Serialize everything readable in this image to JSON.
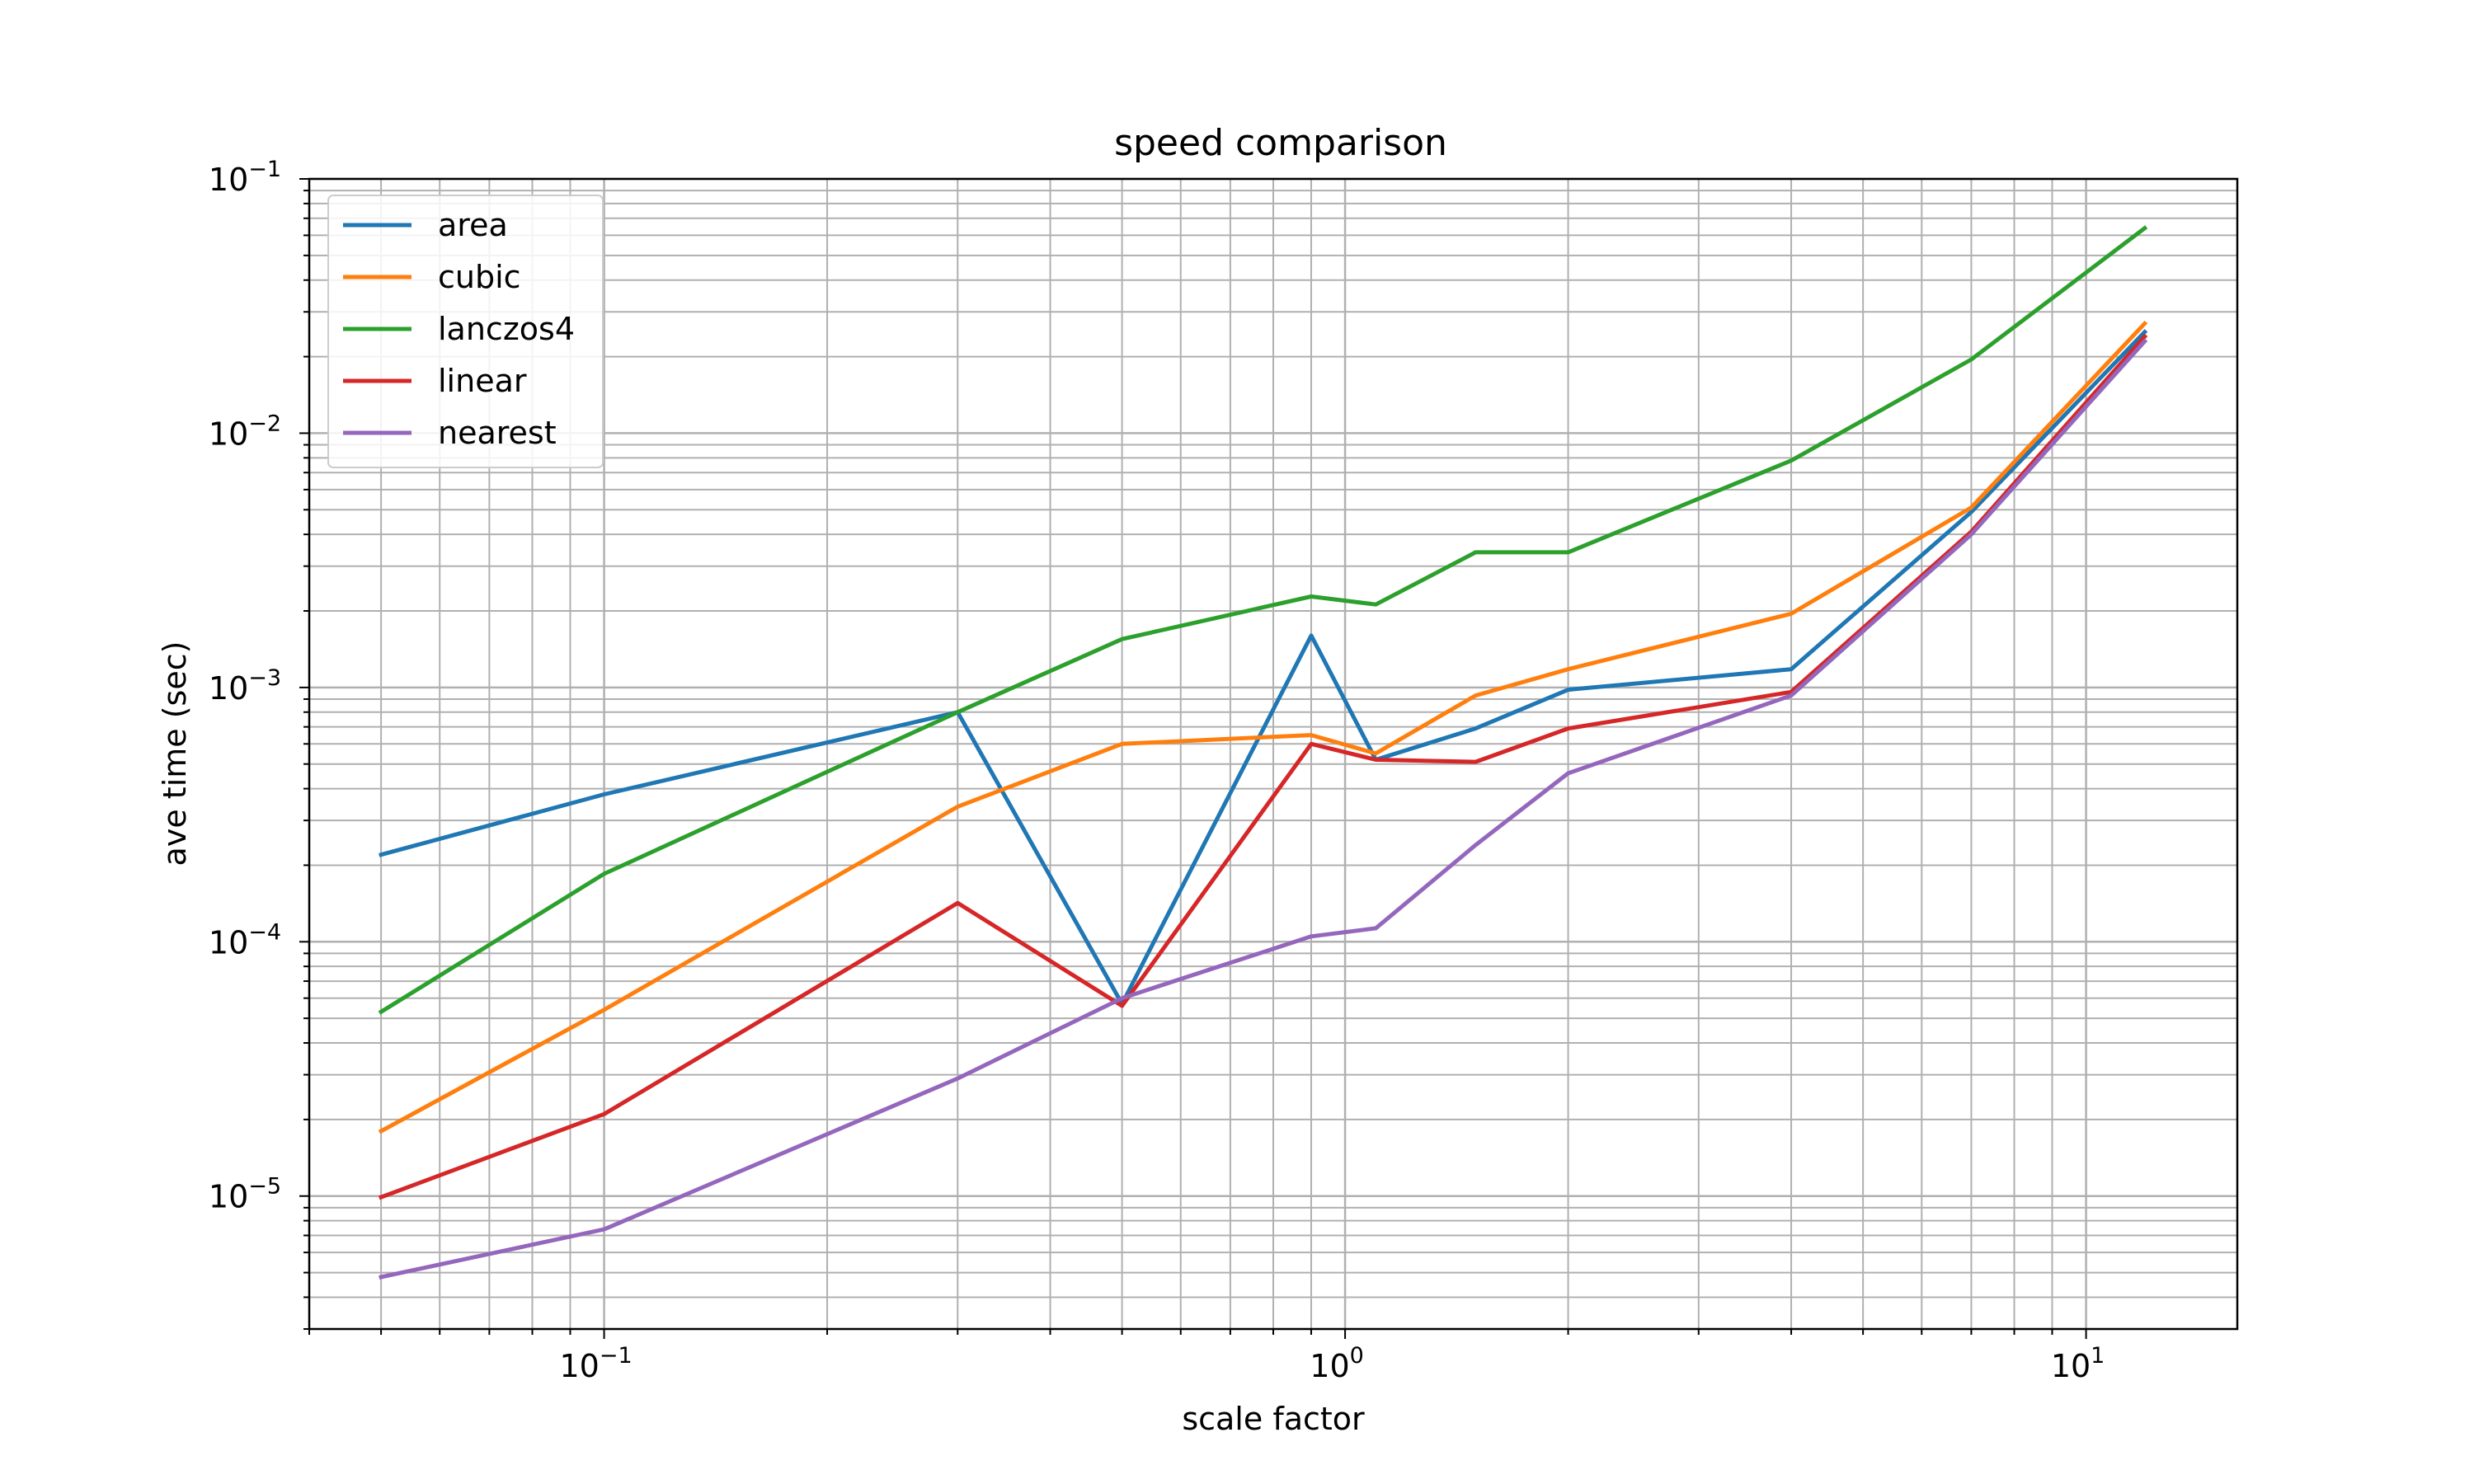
{
  "chart_data": {
    "type": "line",
    "title": "speed comparison",
    "xlabel": "scale factor",
    "ylabel": "ave time (sec)",
    "xscale": "log",
    "yscale": "log",
    "xlim": [
      0.04,
      16
    ],
    "ylim": [
      3e-06,
      0.1
    ],
    "grid": "major and minor",
    "legend_position": "top-left",
    "x_ticks": [
      {
        "base": "10",
        "exp": "−1",
        "value": 0.1
      },
      {
        "base": "10",
        "exp": "0",
        "value": 1
      },
      {
        "base": "10",
        "exp": "1",
        "value": 10
      }
    ],
    "y_ticks": [
      {
        "base": "10",
        "exp": "−5",
        "value": 1e-05
      },
      {
        "base": "10",
        "exp": "−4",
        "value": 0.0001
      },
      {
        "base": "10",
        "exp": "−3",
        "value": 0.001
      },
      {
        "base": "10",
        "exp": "−2",
        "value": 0.01
      },
      {
        "base": "10",
        "exp": "−1",
        "value": 0.1
      }
    ],
    "x": [
      0.05,
      0.1,
      0.3,
      0.5,
      0.9,
      1.1,
      1.5,
      2,
      4,
      7,
      12
    ],
    "series": [
      {
        "name": "area",
        "color": "#1f77b4",
        "values": [
          0.00022,
          0.00038,
          0.0008,
          5.7e-05,
          0.0016,
          0.00052,
          0.00069,
          0.00098,
          0.00118,
          0.0049,
          0.025
        ]
      },
      {
        "name": "cubic",
        "color": "#ff7f0e",
        "values": [
          1.8e-05,
          5.4e-05,
          0.00034,
          0.0006,
          0.00065,
          0.00055,
          0.00093,
          0.00118,
          0.00195,
          0.0051,
          0.027
        ]
      },
      {
        "name": "lanczos4",
        "color": "#2ca02c",
        "values": [
          5.3e-05,
          0.000185,
          0.0008,
          0.00155,
          0.00228,
          0.00212,
          0.0034,
          0.0034,
          0.0078,
          0.0195,
          0.064
        ]
      },
      {
        "name": "linear",
        "color": "#d62728",
        "values": [
          9.9e-06,
          2.1e-05,
          0.000142,
          5.6e-05,
          0.0006,
          0.00052,
          0.00051,
          0.00069,
          0.00096,
          0.0041,
          0.024
        ]
      },
      {
        "name": "nearest",
        "color": "#9467bd",
        "values": [
          4.8e-06,
          7.4e-06,
          2.9e-05,
          6e-05,
          0.000105,
          0.000113,
          0.00024,
          0.00046,
          0.00093,
          0.004,
          0.023
        ]
      }
    ]
  }
}
